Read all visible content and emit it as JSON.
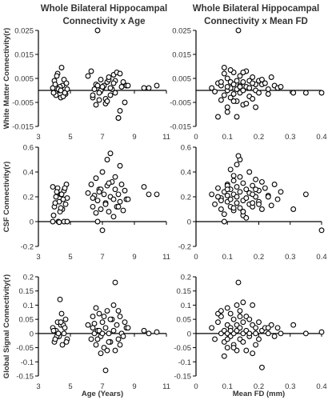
{
  "titles": {
    "left_line1": "Whole Bilateral  Hippocampal",
    "left_line2": "Connectivity x Age",
    "right_line1": "Whole Bilateral  Hippocampal",
    "right_line2": "Connectivity x Mean FD"
  },
  "chart_data": [
    {
      "id": "wm-age",
      "type": "scatter",
      "ylabel": "White Matter Connectivity(r)",
      "xlabel": "",
      "xlim": [
        3,
        11
      ],
      "ylim": [
        -0.015,
        0.025
      ],
      "xticks": [
        "3",
        "5",
        "7",
        "9",
        "11"
      ],
      "yticks": [
        "0.025",
        "0.015",
        "0.005",
        "-0.005",
        "-0.015"
      ],
      "x": [
        3.9,
        4.0,
        4.1,
        4.2,
        4.3,
        4.4,
        4.5,
        4.6,
        4.7,
        4.8,
        3.95,
        4.15,
        4.35,
        4.55,
        4.75,
        4.25,
        4.45,
        4.05,
        4.65,
        4.4,
        6.1,
        6.3,
        6.4,
        6.5,
        6.6,
        6.7,
        6.8,
        6.9,
        7.0,
        7.1,
        7.2,
        7.3,
        7.4,
        7.5,
        7.6,
        7.7,
        7.8,
        7.9,
        8.0,
        8.1,
        8.2,
        8.3,
        8.4,
        8.5,
        6.6,
        6.9,
        7.2,
        7.5,
        7.8,
        8.1,
        6.4,
        6.8,
        7.3,
        7.7,
        8.0,
        7.0,
        7.4,
        8.6,
        9.6,
        9.9,
        10.4,
        6.7
      ],
      "y": [
        0.001,
        0.004,
        -0.002,
        0.007,
        0.0,
        -0.003,
        0.002,
        0.0045,
        -0.0015,
        0.0005,
        -0.001,
        0.006,
        0.0015,
        -0.0025,
        0.003,
        0.0005,
        0.0095,
        0.0025,
        -0.001,
        0.0,
        0.006,
        0.008,
        -0.003,
        0.0005,
        0.0025,
        0.002,
        -0.004,
        0.0045,
        0.001,
        0.002,
        -0.0055,
        0.0035,
        0.0045,
        -0.002,
        0.0005,
        0.0065,
        -0.001,
        0.0075,
        -0.0115,
        0.007,
        0.0015,
        0.0035,
        -0.005,
        0.002,
        -0.006,
        0.0,
        -0.0035,
        0.001,
        0.004,
        -0.0085,
        -0.002,
        -0.001,
        -0.0045,
        0.003,
        -0.0115,
        0.0015,
        0.0055,
        0.002,
        0.001,
        0.001,
        0.002,
        0.025
      ]
    },
    {
      "id": "wm-fd",
      "type": "scatter",
      "ylabel": "",
      "xlabel": "",
      "xlim": [
        0,
        0.4
      ],
      "ylim": [
        -0.015,
        0.025
      ],
      "xticks": [
        "0",
        "0.1",
        "0.2",
        "0.3",
        "0.4"
      ],
      "yticks": [
        "0.025",
        "0.015",
        "0.005",
        "-0.005",
        "-0.015"
      ],
      "x": [
        0.05,
        0.06,
        0.07,
        0.08,
        0.08,
        0.09,
        0.09,
        0.1,
        0.1,
        0.1,
        0.11,
        0.11,
        0.11,
        0.12,
        0.12,
        0.12,
        0.13,
        0.13,
        0.13,
        0.14,
        0.14,
        0.14,
        0.15,
        0.15,
        0.15,
        0.16,
        0.16,
        0.17,
        0.17,
        0.17,
        0.18,
        0.18,
        0.19,
        0.19,
        0.2,
        0.2,
        0.21,
        0.22,
        0.23,
        0.24,
        0.25,
        0.26,
        0.27,
        0.07,
        0.09,
        0.1,
        0.12,
        0.13,
        0.15,
        0.16,
        0.18,
        0.21,
        0.23,
        0.11,
        0.14,
        0.19,
        0.31,
        0.35,
        0.4,
        0.135,
        0.08,
        0.1
      ],
      "y": [
        0.001,
        -0.0005,
        0.003,
        -0.004,
        0.002,
        0.007,
        -0.002,
        0.005,
        0.0,
        -0.007,
        0.0035,
        -0.003,
        0.001,
        0.0075,
        -0.0015,
        0.0025,
        0.0005,
        0.004,
        -0.0045,
        0.002,
        0.006,
        -0.001,
        0.0035,
        0.0,
        -0.006,
        0.008,
        0.0015,
        0.004,
        -0.0025,
        0.001,
        0.0055,
        -0.0035,
        0.0025,
        0.0,
        0.004,
        -0.001,
        0.0025,
        0.003,
        0.0005,
        0.0055,
        0.002,
        0.001,
        0.0015,
        -0.011,
        0.0095,
        -0.009,
        -0.0045,
        -0.011,
        0.0075,
        -0.0055,
        0.003,
        0.0045,
        -0.0015,
        0.0085,
        0.0015,
        -0.007,
        -0.001,
        -0.001,
        -0.001,
        0.025,
        0.0035,
        0.0015
      ]
    },
    {
      "id": "csf-age",
      "type": "scatter",
      "ylabel": "CSF Connectivity(r)",
      "xlabel": "",
      "xlim": [
        3,
        11
      ],
      "ylim": [
        -0.2,
        0.6
      ],
      "xticks": [
        "3",
        "5",
        "7",
        "9",
        "11"
      ],
      "yticks": [
        "0.6",
        "0.4",
        "0.2",
        "0",
        "-0.2"
      ],
      "x": [
        3.9,
        4.0,
        4.1,
        4.2,
        4.3,
        4.4,
        4.5,
        4.6,
        4.7,
        4.8,
        3.95,
        4.15,
        4.35,
        4.55,
        4.75,
        4.25,
        4.45,
        4.05,
        4.65,
        4.4,
        6.1,
        6.3,
        6.4,
        6.5,
        6.6,
        6.7,
        6.8,
        6.9,
        7.0,
        7.1,
        7.2,
        7.3,
        7.4,
        7.5,
        7.6,
        7.7,
        7.8,
        7.9,
        8.0,
        8.1,
        8.2,
        8.3,
        8.4,
        8.5,
        6.6,
        6.9,
        7.2,
        7.5,
        7.8,
        8.1,
        6.4,
        6.8,
        7.3,
        7.7,
        8.0,
        7.0,
        7.4,
        8.6,
        9.6,
        9.9,
        10.4,
        6.7,
        4.3,
        4.6,
        3.9,
        4.8
      ],
      "y": [
        0.28,
        0.12,
        0.2,
        0.27,
        0.16,
        0.22,
        0.1,
        0.25,
        0.14,
        0.19,
        0.05,
        0.24,
        0.08,
        0.18,
        0.3,
        0.0,
        0.22,
        0.15,
        0.27,
        0.11,
        0.23,
        0.3,
        0.12,
        0.21,
        0.35,
        0.17,
        0.26,
        0.1,
        0.4,
        0.22,
        0.15,
        0.29,
        0.08,
        0.2,
        0.32,
        0.18,
        0.26,
        0.12,
        0.22,
        0.16,
        0.3,
        0.09,
        0.25,
        0.18,
        0.07,
        0.26,
        0.14,
        0.55,
        0.36,
        0.45,
        0.19,
        0.24,
        0.5,
        0.04,
        0.12,
        -0.07,
        0.31,
        0.18,
        0.28,
        0.22,
        0.22,
        0.0,
        -0.005,
        0.0,
        0.0,
        0.0
      ]
    },
    {
      "id": "csf-fd",
      "type": "scatter",
      "ylabel": "",
      "xlabel": "",
      "xlim": [
        0,
        0.4
      ],
      "ylim": [
        -0.2,
        0.6
      ],
      "xticks": [
        "0",
        "0.1",
        "0.2",
        "0.3",
        "0.4"
      ],
      "yticks": [
        "0.6",
        "0.4",
        "0.2",
        "0",
        "-0.2"
      ],
      "x": [
        0.05,
        0.06,
        0.07,
        0.08,
        0.08,
        0.09,
        0.09,
        0.1,
        0.1,
        0.1,
        0.11,
        0.11,
        0.11,
        0.12,
        0.12,
        0.12,
        0.13,
        0.13,
        0.13,
        0.14,
        0.14,
        0.14,
        0.15,
        0.15,
        0.15,
        0.16,
        0.16,
        0.17,
        0.17,
        0.17,
        0.18,
        0.18,
        0.19,
        0.19,
        0.2,
        0.2,
        0.21,
        0.22,
        0.23,
        0.24,
        0.25,
        0.26,
        0.27,
        0.07,
        0.09,
        0.1,
        0.12,
        0.13,
        0.15,
        0.16,
        0.18,
        0.21,
        0.23,
        0.11,
        0.14,
        0.19,
        0.31,
        0.35,
        0.4,
        0.135,
        0.08,
        0.1,
        0.12,
        0.15,
        0.18,
        0.2
      ],
      "y": [
        0.22,
        0.14,
        0.27,
        0.1,
        0.19,
        0.24,
        0.06,
        0.3,
        0.16,
        0.21,
        0.12,
        0.26,
        0.18,
        0.33,
        0.09,
        0.22,
        0.15,
        0.28,
        0.2,
        0.36,
        0.11,
        0.24,
        0.17,
        0.31,
        0.08,
        0.26,
        0.19,
        0.4,
        0.14,
        0.23,
        0.29,
        0.12,
        0.2,
        0.34,
        0.16,
        0.25,
        0.1,
        0.27,
        0.21,
        0.13,
        0.3,
        0.18,
        0.24,
        0.2,
        0.0,
        0.29,
        0.37,
        0.46,
        0.05,
        0.03,
        0.15,
        0.32,
        0.2,
        0.42,
        0.5,
        0.26,
        0.1,
        0.22,
        -0.07,
        0.53,
        0.17,
        0.26,
        0.11,
        0.08,
        0.22,
        0.14
      ]
    },
    {
      "id": "gs-age",
      "type": "scatter",
      "ylabel": "Global Signal Connectivity(r)",
      "xlabel": "Age (Years)",
      "xlim": [
        3,
        11
      ],
      "ylim": [
        -0.15,
        0.2
      ],
      "xticks": [
        "3",
        "5",
        "7",
        "9",
        "11"
      ],
      "yticks": [
        "0.2",
        "0.15",
        "0.1",
        "0.05",
        "0",
        "-0.05",
        "-0.1",
        "-0.15"
      ],
      "x": [
        3.9,
        4.0,
        4.1,
        4.2,
        4.3,
        4.4,
        4.5,
        4.6,
        4.7,
        4.8,
        3.95,
        4.15,
        4.35,
        4.55,
        4.75,
        4.25,
        4.45,
        4.05,
        4.65,
        4.4,
        6.1,
        6.3,
        6.4,
        6.5,
        6.6,
        6.7,
        6.8,
        6.9,
        7.0,
        7.1,
        7.2,
        7.3,
        7.4,
        7.5,
        7.6,
        7.7,
        7.8,
        7.9,
        8.0,
        8.1,
        8.2,
        8.3,
        8.4,
        8.5,
        6.6,
        6.9,
        7.2,
        7.5,
        7.8,
        8.1,
        6.4,
        6.8,
        7.3,
        7.7,
        8.0,
        7.0,
        7.4,
        8.6,
        9.6,
        9.9,
        10.4,
        6.7,
        7.1,
        6.5
      ],
      "y": [
        0.02,
        -0.03,
        0.01,
        0.04,
        -0.01,
        0.03,
        -0.04,
        0.0,
        0.05,
        -0.02,
        0.01,
        -0.01,
        0.12,
        0.03,
        -0.03,
        0.0,
        0.07,
        -0.02,
        0.02,
        0.04,
        0.03,
        -0.02,
        0.06,
        0.0,
        -0.04,
        0.01,
        0.07,
        -0.01,
        0.04,
        -0.05,
        0.02,
        0.08,
        0.0,
        -0.03,
        0.05,
        0.01,
        -0.06,
        0.03,
        -0.02,
        0.06,
        0.0,
        -0.01,
        0.04,
        0.02,
        0.09,
        -0.07,
        -0.13,
        0.05,
        0.18,
        -0.04,
        0.02,
        0.01,
        -0.06,
        0.1,
        0.08,
        0.0,
        -0.03,
        0.02,
        0.01,
        0.0,
        0.005,
        -0.02,
        0.06,
        0.035
      ]
    },
    {
      "id": "gs-fd",
      "type": "scatter",
      "ylabel": "",
      "xlabel": "Mean FD (mm)",
      "xlim": [
        0,
        0.4
      ],
      "ylim": [
        -0.15,
        0.2
      ],
      "xticks": [
        "0",
        "0.1",
        "0.2",
        "0.3",
        "0.4"
      ],
      "yticks": [
        "0.2",
        "0.15",
        "0.1",
        "0.05",
        "0",
        "-0.05",
        "-0.1",
        "-0.15"
      ],
      "x": [
        0.05,
        0.06,
        0.07,
        0.08,
        0.08,
        0.09,
        0.09,
        0.1,
        0.1,
        0.1,
        0.11,
        0.11,
        0.11,
        0.12,
        0.12,
        0.12,
        0.13,
        0.13,
        0.13,
        0.14,
        0.14,
        0.14,
        0.15,
        0.15,
        0.15,
        0.16,
        0.16,
        0.17,
        0.17,
        0.17,
        0.18,
        0.18,
        0.19,
        0.19,
        0.2,
        0.2,
        0.21,
        0.22,
        0.23,
        0.24,
        0.25,
        0.26,
        0.27,
        0.07,
        0.09,
        0.1,
        0.12,
        0.13,
        0.15,
        0.16,
        0.18,
        0.21,
        0.23,
        0.11,
        0.14,
        0.19,
        0.31,
        0.35,
        0.4,
        0.135,
        0.08,
        0.1
      ],
      "y": [
        0.02,
        -0.02,
        0.04,
        0.0,
        0.06,
        -0.03,
        0.01,
        0.03,
        -0.05,
        0.0,
        0.07,
        -0.01,
        0.02,
        0.05,
        -0.04,
        0.0,
        0.03,
        -0.06,
        0.01,
        0.08,
        -0.02,
        0.02,
        0.0,
        0.04,
        -0.03,
        0.06,
        0.01,
        -0.01,
        0.05,
        0.0,
        0.03,
        -0.07,
        0.02,
        0.0,
        0.04,
        -0.02,
        0.01,
        0.02,
        0.0,
        0.03,
        -0.01,
        0.02,
        0.0,
        0.07,
        -0.08,
        0.09,
        -0.05,
        0.1,
        0.11,
        -0.06,
        0.1,
        -0.12,
        0.02,
        0.01,
        0.06,
        -0.04,
        0.03,
        0.0,
        0.005,
        0.18,
        0.08,
        -0.02
      ]
    }
  ]
}
